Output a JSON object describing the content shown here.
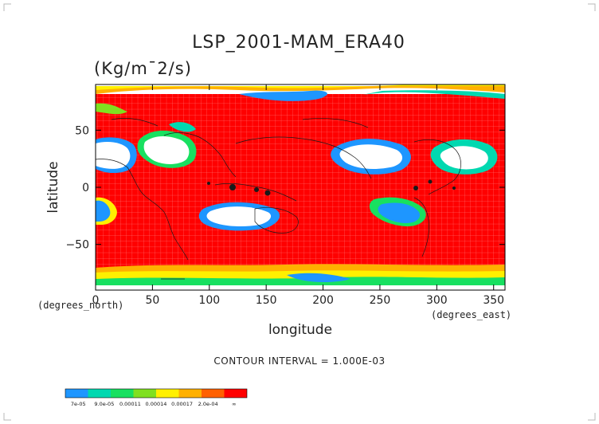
{
  "chart_data": {
    "type": "heatmap",
    "title": "LSP_2001-MAM_ERA40",
    "units": "(Kg/m¯2/s)",
    "xlabel": "longitude",
    "ylabel": "latitude",
    "x_unit_label": "(degrees_east)",
    "y_unit_label": "(degrees_north)",
    "xlim": [
      0,
      360
    ],
    "ylim": [
      -90,
      90
    ],
    "x_ticks": [
      {
        "value": 0,
        "label": "0"
      },
      {
        "value": 50,
        "label": "50"
      },
      {
        "value": 100,
        "label": "100"
      },
      {
        "value": 150,
        "label": "150"
      },
      {
        "value": 200,
        "label": "200"
      },
      {
        "value": 250,
        "label": "250"
      },
      {
        "value": 300,
        "label": "300"
      },
      {
        "value": 350,
        "label": "350"
      }
    ],
    "y_ticks": [
      {
        "value": 50,
        "label": "50"
      },
      {
        "value": 0,
        "label": "0"
      },
      {
        "value": -50,
        "label": "−50"
      }
    ],
    "contour_interval_text": "CONTOUR INTERVAL = 1.000E-03",
    "colorbar": {
      "colors": [
        "#1e96ff",
        "#00d8b0",
        "#18e060",
        "#80e020",
        "#fff000",
        "#ffb000",
        "#ff6000",
        "#ff0000"
      ],
      "labels": [
        "7e-05",
        "9.0e-05",
        "0.00011",
        "0.00014",
        "0.00017",
        "2.0e-04",
        "∞"
      ]
    },
    "dominant_level": "> 2.0e-04 (red) over most of the globe; lower levels near polar edges and subtropical dry zones"
  }
}
